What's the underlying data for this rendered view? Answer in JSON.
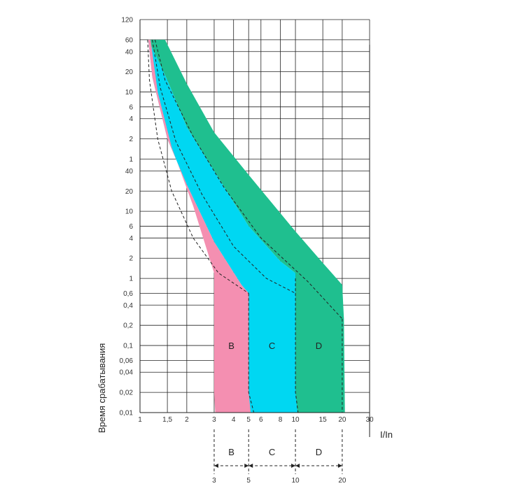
{
  "chart_data": {
    "type": "area",
    "title": "",
    "xlabel": "I/In",
    "ylabel": "Время срабатывания",
    "x_scale": "log",
    "y_scale": "log",
    "grid": true,
    "x_ticks": [
      "1",
      "1,5",
      "2",
      "3",
      "4",
      "5",
      "6",
      "8",
      "10",
      "15",
      "20",
      "30"
    ],
    "y_ticks_minutes": [
      "120",
      "60",
      "40",
      "20",
      "10",
      "6",
      "4",
      "2",
      "1"
    ],
    "y_ticks_seconds": [
      "40",
      "20",
      "10",
      "6",
      "4",
      "2",
      "1",
      "0,6",
      "0,4",
      "0,2",
      "0,1",
      "0,06",
      "0,04",
      "0,02",
      "0,01"
    ],
    "bands": [
      {
        "name": "B",
        "color": "#f48fb1",
        "lower_curve": [
          [
            1.13,
            3600
          ],
          [
            1.2,
            1000
          ],
          [
            1.5,
            120
          ],
          [
            2,
            25
          ],
          [
            3,
            3.5
          ],
          [
            4.5,
            0.8
          ],
          [
            5,
            0.6
          ]
        ],
        "instantaneous_range": [
          3,
          5
        ]
      },
      {
        "name": "C",
        "color": "#00d7f2",
        "lower_curve": [
          [
            1.13,
            3600
          ],
          [
            1.5,
            900
          ],
          [
            2,
            180
          ],
          [
            3,
            40
          ],
          [
            5,
            6
          ],
          [
            8,
            1.8
          ],
          [
            10,
            1.2
          ]
        ],
        "instantaneous_range": [
          5,
          10
        ]
      },
      {
        "name": "D",
        "color": "#1fbf8f",
        "upper_curve": [
          [
            1.45,
            3600
          ],
          [
            2,
            800
          ],
          [
            3,
            150
          ],
          [
            5,
            35
          ],
          [
            10,
            5
          ],
          [
            15,
            1.7
          ],
          [
            20,
            0.8
          ]
        ],
        "instantaneous_range": [
          10,
          20
        ]
      }
    ],
    "bottom_ranges": [
      {
        "name": "B",
        "from": "3",
        "to": "5"
      },
      {
        "name": "C",
        "from": "5",
        "to": "10"
      },
      {
        "name": "D",
        "from": "10",
        "to": "20"
      }
    ]
  }
}
